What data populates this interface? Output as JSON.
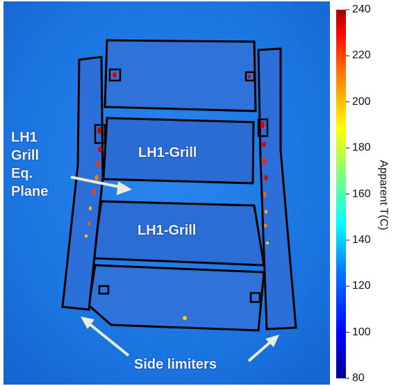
{
  "labels": {
    "grill_upper": "LH1-Grill",
    "grill_lower": "LH1-Grill",
    "eq_plane": "LH1\nGrill\nEq.\nPlane",
    "side_limiters": "Side limiters"
  },
  "colorbar": {
    "title": "Apparent T(C)",
    "min": 80,
    "max": 240,
    "ticks": [
      "240",
      "220",
      "200",
      "180",
      "160",
      "140",
      "120",
      "100",
      "80"
    ],
    "colors": [
      "#00008f",
      "#0000ff",
      "#0080ff",
      "#00ffff",
      "#80ff80",
      "#ffff00",
      "#ff8000",
      "#ff0000",
      "#800000"
    ]
  },
  "colors": {
    "background_blue": "#1a74e0",
    "panel_blue": "#2f6fd6",
    "outline": "#000000",
    "arrow": "#e8ecd8",
    "hot_spot": "#e00000"
  }
}
